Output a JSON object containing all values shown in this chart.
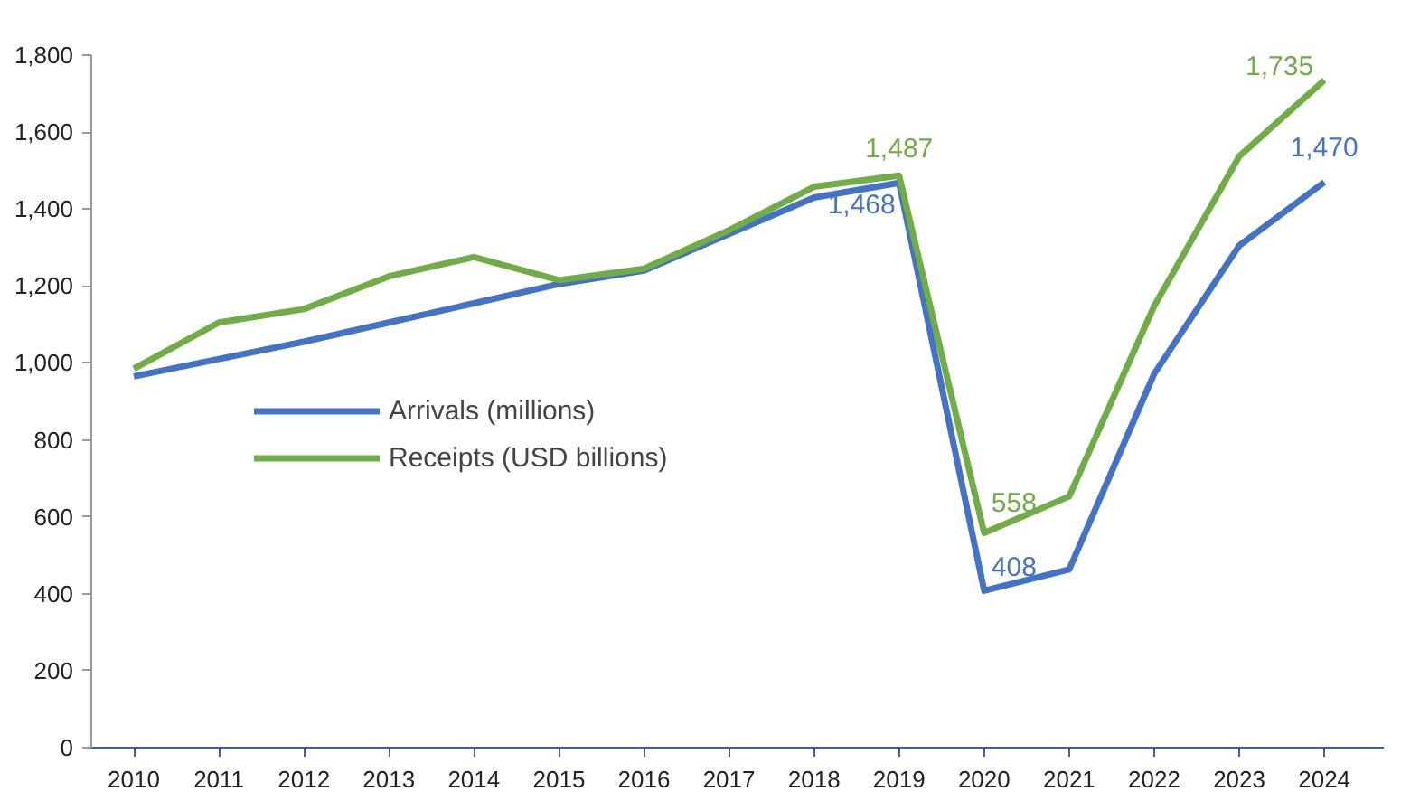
{
  "chart_data": {
    "type": "line",
    "categories": [
      "2010",
      "2011",
      "2012",
      "2013",
      "2014",
      "2015",
      "2016",
      "2017",
      "2018",
      "2019",
      "2020",
      "2021",
      "2022",
      "2023",
      "2024"
    ],
    "series": [
      {
        "name": "Arrivals (millions)",
        "color": "#4472c4",
        "values": [
          965,
          1010,
          1055,
          1105,
          1155,
          1205,
          1240,
          1335,
          1430,
          1468,
          408,
          463,
          972,
          1305,
          1470
        ],
        "value_labels": [
          null,
          null,
          null,
          null,
          null,
          null,
          null,
          null,
          null,
          "1,468",
          "408",
          null,
          null,
          null,
          "1,470"
        ]
      },
      {
        "name": "Receipts (USD billions)",
        "color": "#70ad47",
        "values": [
          985,
          1105,
          1140,
          1225,
          1275,
          1215,
          1245,
          1345,
          1458,
          1487,
          558,
          653,
          1148,
          1537,
          1735
        ],
        "value_labels": [
          null,
          null,
          null,
          null,
          null,
          null,
          null,
          null,
          null,
          "1,487",
          "558",
          null,
          null,
          null,
          "1,735"
        ]
      }
    ],
    "ylim": [
      0,
      1800
    ],
    "yticks": [
      {
        "value": 0,
        "label": "0"
      },
      {
        "value": 200,
        "label": "200"
      },
      {
        "value": 400,
        "label": "400"
      },
      {
        "value": 600,
        "label": "600"
      },
      {
        "value": 800,
        "label": "800"
      },
      {
        "value": 1000,
        "label": "1,000"
      },
      {
        "value": 1200,
        "label": "1,200"
      },
      {
        "value": 1400,
        "label": "1,400"
      },
      {
        "value": 1600,
        "label": "1,600"
      },
      {
        "value": 1800,
        "label": "1,800"
      }
    ],
    "grid": false,
    "legend": "center",
    "marker": "none",
    "line_style": "solid"
  }
}
